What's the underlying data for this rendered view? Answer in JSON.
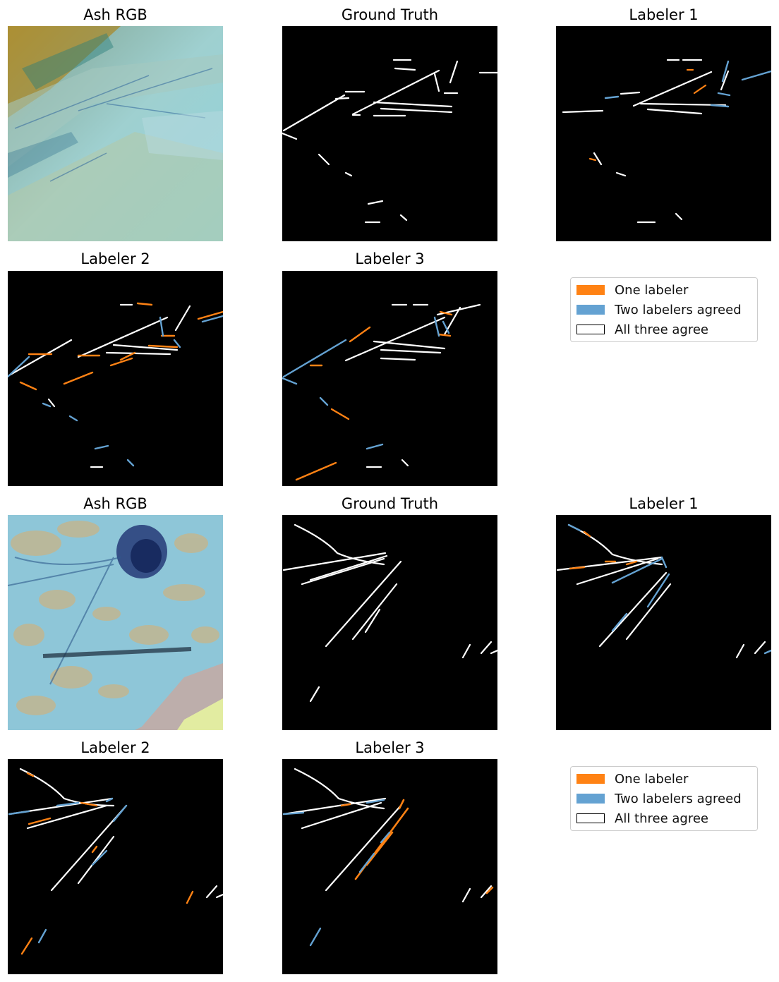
{
  "colors": {
    "one_labeler": "#ff8214",
    "two_labelers": "#64a2d2",
    "all_three_edge": "#000000",
    "mask_background": "#000000",
    "contrail": "#ffffff"
  },
  "rows": [
    {
      "titles": [
        "Ash RGB",
        "Ground Truth",
        "Labeler 1"
      ],
      "images": [
        "ash-rgb-satellite-scene-1",
        "ground-truth-mask-1",
        "labeler-1-mask-1"
      ]
    },
    {
      "titles": [
        "Labeler 2",
        "Labeler 3"
      ],
      "images": [
        "labeler-2-mask-1",
        "labeler-3-mask-1"
      ]
    },
    {
      "titles": [
        "Ash RGB",
        "Ground Truth",
        "Labeler 1"
      ],
      "images": [
        "ash-rgb-satellite-scene-2",
        "ground-truth-mask-2",
        "labeler-1-mask-2"
      ]
    },
    {
      "titles": [
        "Labeler 2",
        "Labeler 3"
      ],
      "images": [
        "labeler-2-mask-2",
        "labeler-3-mask-2"
      ]
    }
  ],
  "legend": {
    "one_labeler": "One labeler",
    "two_labelers": "Two labelers agreed",
    "all_three": "All three agree"
  }
}
